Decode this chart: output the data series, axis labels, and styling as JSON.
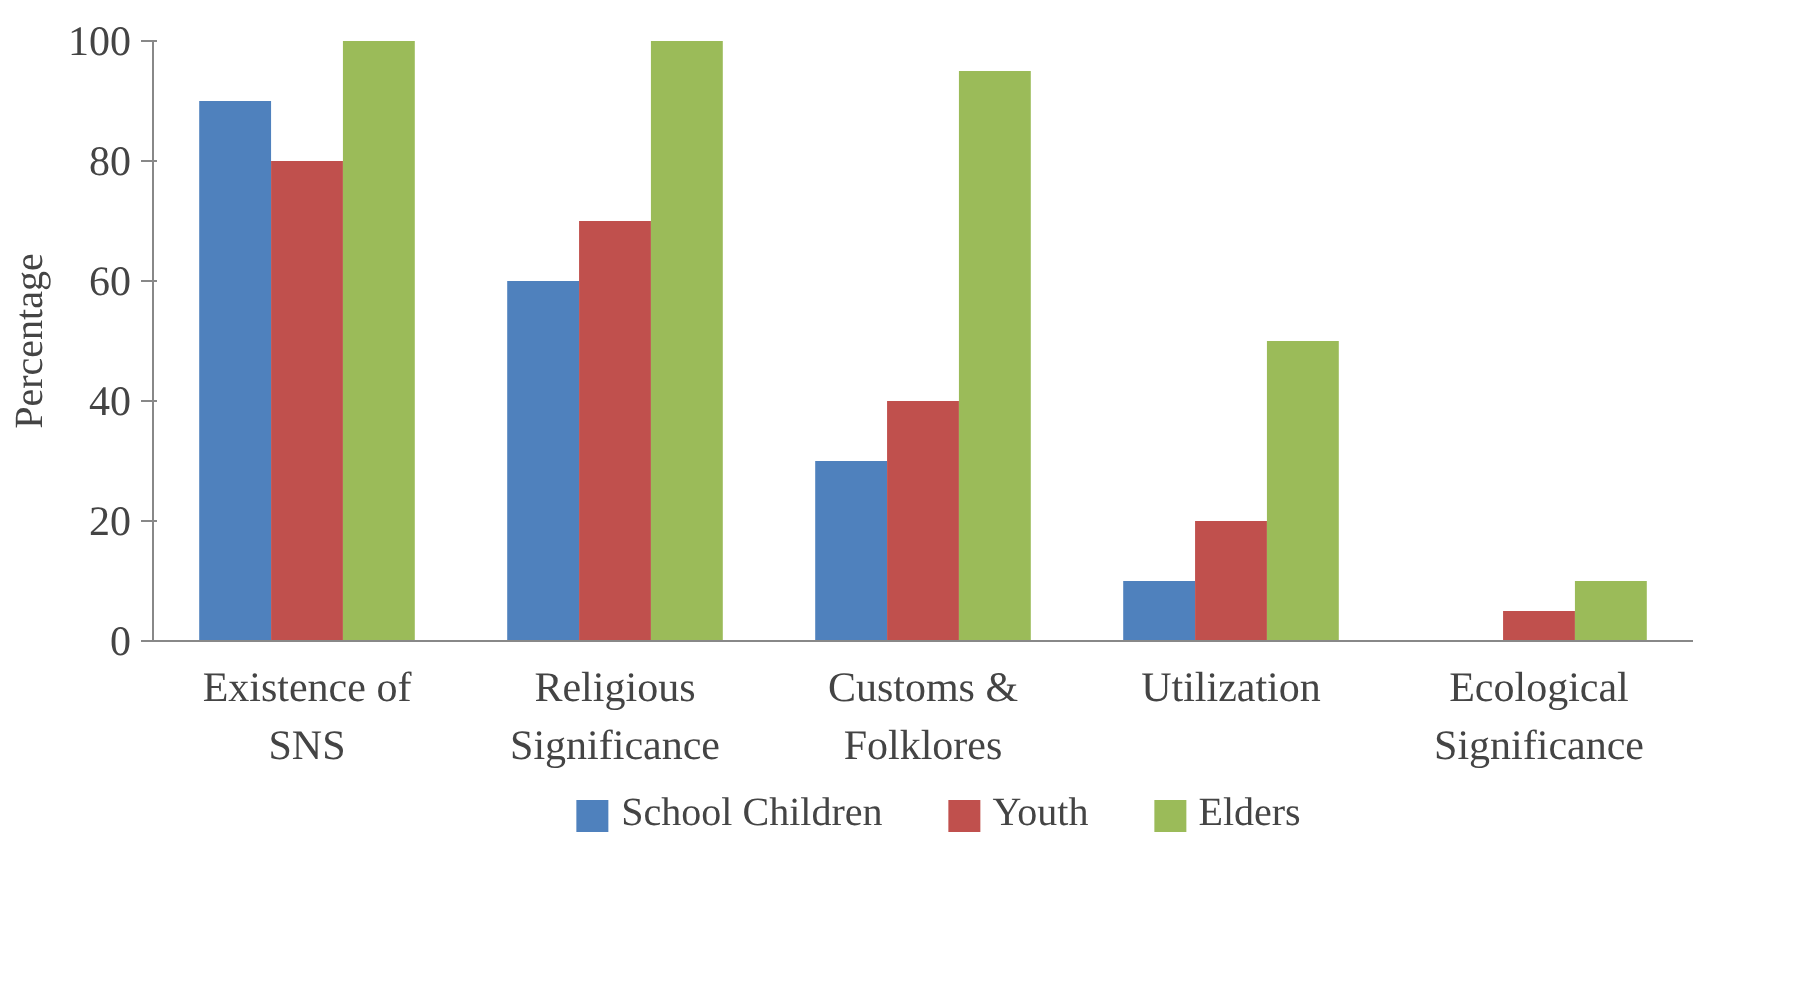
{
  "chart_data": {
    "type": "bar",
    "ylabel": "Percentage",
    "categories": [
      "Existence of SNS",
      "Religious Significance",
      "Customs & Folklores",
      "Utilization",
      "Ecological Significance"
    ],
    "series": [
      {
        "name": "School Children",
        "color": "#4f81bd",
        "values": [
          90,
          60,
          30,
          10,
          0
        ]
      },
      {
        "name": "Youth",
        "color": "#c0504d",
        "values": [
          80,
          70,
          40,
          20,
          5
        ]
      },
      {
        "name": "Elders",
        "color": "#9bbb59",
        "values": [
          100,
          100,
          95,
          50,
          10
        ]
      }
    ],
    "ylim": [
      0,
      100
    ],
    "yticks": [
      0,
      20,
      40,
      60,
      80,
      100
    ],
    "grid": false,
    "legend": "bottom"
  }
}
